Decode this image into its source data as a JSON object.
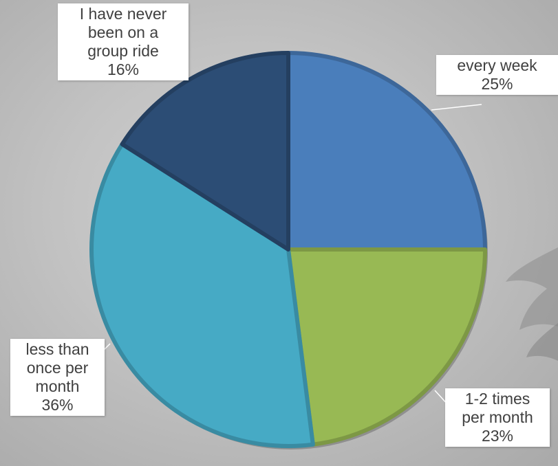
{
  "chart_data": {
    "type": "pie",
    "title": "",
    "start_angle_deg": 0,
    "direction": "clockwise",
    "slices": [
      {
        "label_lines": [
          "every week"
        ],
        "value": 25,
        "value_label": "25%",
        "color": "#4a7ebb"
      },
      {
        "label_lines": [
          "1-2 times",
          "per month"
        ],
        "value": 23,
        "value_label": "23%",
        "color": "#98b954"
      },
      {
        "label_lines": [
          "less than",
          "once per",
          "month"
        ],
        "value": 36,
        "value_label": "36%",
        "color": "#46aac5"
      },
      {
        "label_lines": [
          "I have never",
          "been on a",
          "group ride"
        ],
        "value": 16,
        "value_label": "16%",
        "color": "#2c4d75"
      }
    ]
  }
}
